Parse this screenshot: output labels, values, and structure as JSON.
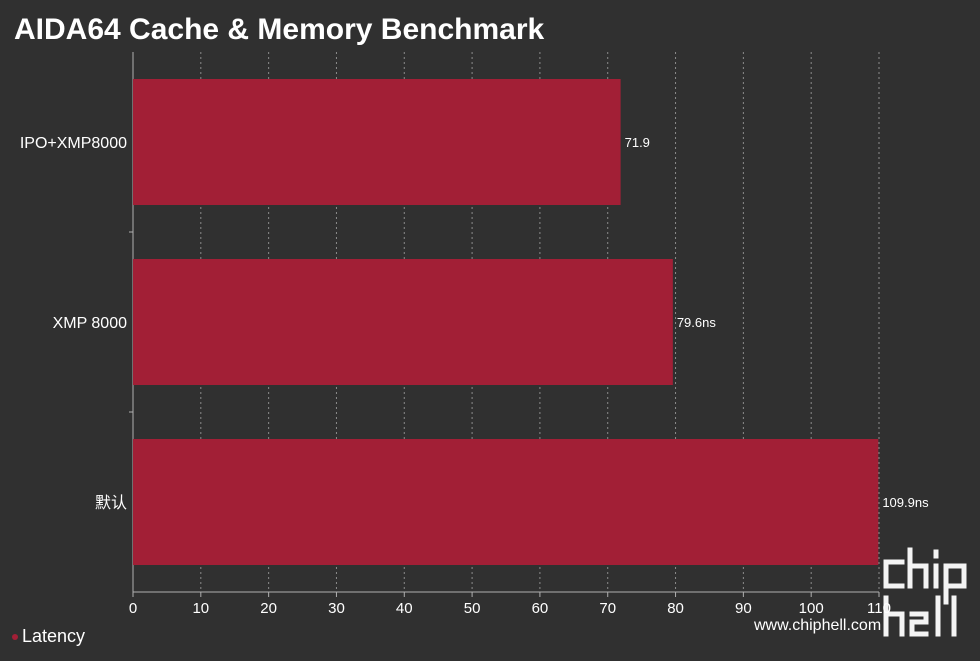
{
  "title": "AIDA64 Cache & Memory Benchmark",
  "colors": {
    "background": "#303030",
    "bar": "#a21f36",
    "grid": "#8c8c8c",
    "axis": "#b0b0b0",
    "text": "#ffffff"
  },
  "watermark": {
    "url": "www.chiphell.com",
    "logo_text": "chiphell"
  },
  "chart_data": {
    "type": "bar",
    "orientation": "horizontal",
    "title": "AIDA64 Cache & Memory Benchmark",
    "categories": [
      "IPO+XMP8000",
      "XMP 8000",
      "默认"
    ],
    "series": [
      {
        "name": "Latency",
        "values": [
          71.9,
          79.6,
          109.9
        ],
        "labels": [
          "71.9",
          "79.6ns",
          "109.9ns"
        ]
      }
    ],
    "xlim": [
      0,
      110
    ],
    "xticks": [
      "0",
      "10",
      "20",
      "30",
      "40",
      "50",
      "60",
      "70",
      "80",
      "90",
      "100",
      "110"
    ],
    "grid": true,
    "legend": "bottom-left"
  }
}
